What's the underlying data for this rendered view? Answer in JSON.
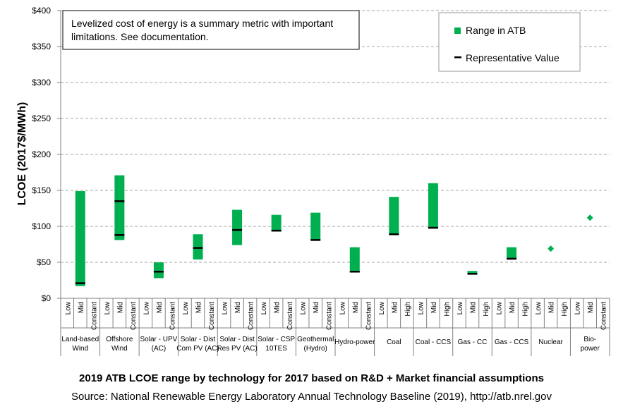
{
  "chart_data": {
    "type": "bar",
    "subtype": "floating-range",
    "ylabel": "LCOE (2017$/MWh)",
    "ylim": [
      0,
      400
    ],
    "yticks": [
      0,
      50,
      100,
      150,
      200,
      250,
      300,
      350,
      400
    ],
    "y_tick_labels": [
      "$0",
      "$50",
      "$100",
      "$150",
      "$200",
      "$250",
      "$300",
      "$350",
      "$400"
    ],
    "grid": "horizontal dashed",
    "legend_position": "top-right",
    "legend": [
      {
        "label": "Range in ATB",
        "color": "#00b050",
        "marker": "square"
      },
      {
        "label": "Representative Value",
        "color": "#000000",
        "marker": "dash"
      }
    ],
    "note": "Levelized cost of energy is a summary metric with important limitations. See documentation.",
    "groups": [
      {
        "label": [
          "Land-based",
          "Wind"
        ],
        "subcategories": [
          "Low",
          "Mid",
          "Constant"
        ]
      },
      {
        "label": [
          "Offshore",
          "Wind"
        ],
        "subcategories": [
          "Low",
          "Mid",
          "Constant"
        ]
      },
      {
        "label": [
          "Solar - UPV",
          "(AC)"
        ],
        "subcategories": [
          "Low",
          "Mid",
          "Constant"
        ]
      },
      {
        "label": [
          "Solar - Dist",
          "Com PV (AC)"
        ],
        "subcategories": [
          "Low",
          "Mid",
          "Constant"
        ]
      },
      {
        "label": [
          "Solar - Dist",
          "Res PV (AC)"
        ],
        "subcategories": [
          "Low",
          "Mid",
          "Constant"
        ]
      },
      {
        "label": [
          "Solar - CSP",
          "10TES"
        ],
        "subcategories": [
          "Low",
          "Mid",
          "Constant"
        ]
      },
      {
        "label": [
          "Geothermal",
          "(Hydro)"
        ],
        "subcategories": [
          "Low",
          "Mid",
          "Constant"
        ]
      },
      {
        "label": [
          "Hydro-power"
        ],
        "subcategories": [
          "Low",
          "Mid",
          "Constant"
        ]
      },
      {
        "label": [
          "Coal"
        ],
        "subcategories": [
          "Low",
          "Mid",
          "High"
        ]
      },
      {
        "label": [
          "Coal - CCS"
        ],
        "subcategories": [
          "Low",
          "Mid",
          "High"
        ]
      },
      {
        "label": [
          "Gas - CC"
        ],
        "subcategories": [
          "Low",
          "Mid",
          "High"
        ]
      },
      {
        "label": [
          "Gas - CCS"
        ],
        "subcategories": [
          "Low",
          "Mid",
          "High"
        ]
      },
      {
        "label": [
          "Nuclear"
        ],
        "subcategories": [
          "Low",
          "Mid",
          "High"
        ]
      },
      {
        "label": [
          "Bio-",
          "power"
        ],
        "subcategories": [
          "Low",
          "Mid",
          "Constant"
        ]
      }
    ],
    "series": [
      {
        "name": "Range in ATB",
        "data": [
          {
            "technology": "Land-based Wind",
            "min": 17,
            "max": 149
          },
          {
            "technology": "Offshore Wind",
            "min": 81,
            "max": 171
          },
          {
            "technology": "Solar - UPV (AC)",
            "min": 28,
            "max": 50
          },
          {
            "technology": "Solar - Dist Com PV (AC)",
            "min": 54,
            "max": 89
          },
          {
            "technology": "Solar - Dist Res PV (AC)",
            "min": 74,
            "max": 123
          },
          {
            "technology": "Solar - CSP 10TES",
            "min": 93,
            "max": 116
          },
          {
            "technology": "Geothermal (Hydro)",
            "min": 81,
            "max": 119
          },
          {
            "technology": "Hydro-power",
            "min": 36,
            "max": 71
          },
          {
            "technology": "Coal",
            "min": 88,
            "max": 141
          },
          {
            "technology": "Coal - CCS",
            "min": 98,
            "max": 160
          },
          {
            "technology": "Gas - CC",
            "min": 33,
            "max": 38
          },
          {
            "technology": "Gas - CCS",
            "min": 55,
            "max": 71
          },
          {
            "technology": "Nuclear",
            "min": 69,
            "max": 69,
            "point": true
          },
          {
            "technology": "Bio-power",
            "min": 112,
            "max": 112,
            "point": true
          }
        ]
      },
      {
        "name": "Representative Value",
        "data": [
          {
            "technology": "Land-based Wind",
            "values": [
              21
            ]
          },
          {
            "technology": "Offshore Wind",
            "values": [
              88,
              135
            ]
          },
          {
            "technology": "Solar - UPV (AC)",
            "values": [
              37
            ]
          },
          {
            "technology": "Solar - Dist Com PV (AC)",
            "values": [
              70
            ]
          },
          {
            "technology": "Solar - Dist Res PV (AC)",
            "values": [
              95
            ]
          },
          {
            "technology": "Solar - CSP 10TES",
            "values": [
              94
            ]
          },
          {
            "technology": "Geothermal (Hydro)",
            "values": [
              81
            ]
          },
          {
            "technology": "Hydro-power",
            "values": [
              37
            ]
          },
          {
            "technology": "Coal",
            "values": [
              89
            ]
          },
          {
            "technology": "Coal - CCS",
            "values": [
              98
            ]
          },
          {
            "technology": "Gas - CC",
            "values": [
              34
            ]
          },
          {
            "technology": "Gas - CCS",
            "values": [
              55
            ]
          },
          {
            "technology": "Nuclear",
            "values": []
          },
          {
            "technology": "Bio-power",
            "values": []
          }
        ]
      }
    ]
  },
  "caption": {
    "title": "2019 ATB LCOE range by technology for 2017 based on R&D + Market financial assumptions",
    "source": "Source: National Renewable Energy Laboratory Annual Technology Baseline (2019),  http://atb.nrel.gov"
  }
}
